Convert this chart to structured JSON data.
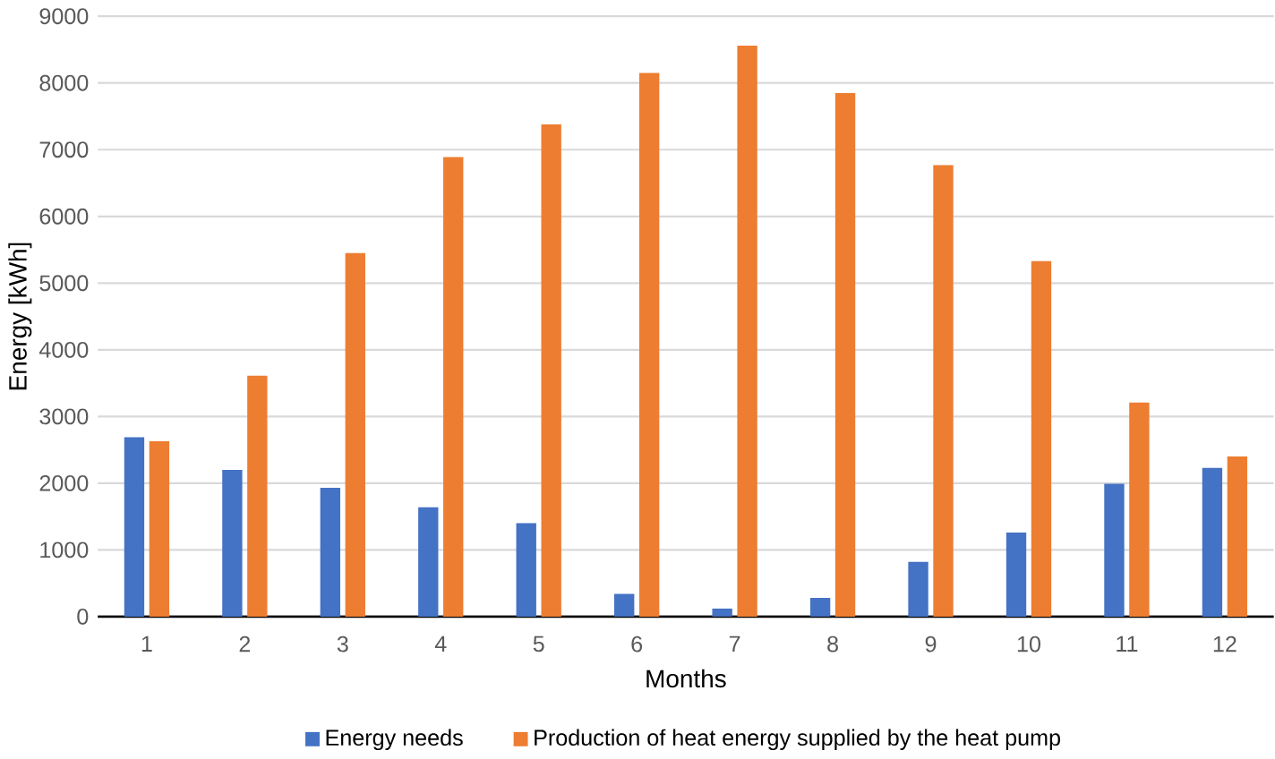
{
  "chart_data": {
    "type": "bar",
    "xlabel": "Months",
    "ylabel": "Energy [kWh]",
    "categories": [
      "1",
      "2",
      "3",
      "4",
      "5",
      "6",
      "7",
      "8",
      "9",
      "10",
      "11",
      "12"
    ],
    "series": [
      {
        "name": "Energy needs",
        "color": "#4472c4",
        "values": [
          2690,
          2200,
          1930,
          1640,
          1400,
          340,
          120,
          280,
          820,
          1260,
          1990,
          2230
        ]
      },
      {
        "name": "Production of heat energy supplied by the heat pump",
        "color": "#ed7d31",
        "values": [
          2630,
          3610,
          5450,
          6890,
          7380,
          8150,
          8560,
          7850,
          6770,
          5330,
          3210,
          2400
        ]
      }
    ],
    "ylim": [
      0,
      9000
    ],
    "yticks": [
      0,
      1000,
      2000,
      3000,
      4000,
      5000,
      6000,
      7000,
      8000,
      9000
    ],
    "grid": "y",
    "legend": "bottom"
  }
}
